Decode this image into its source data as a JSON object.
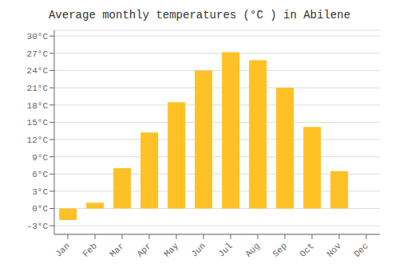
{
  "chart_data": {
    "type": "bar",
    "title": "Average monthly temperatures (°C ) in Abilene",
    "categories": [
      "Jan",
      "Feb",
      "Mar",
      "Apr",
      "May",
      "Jun",
      "Jul",
      "Aug",
      "Sep",
      "Oct",
      "Nov",
      "Dec"
    ],
    "values": [
      -2.0,
      1.0,
      7.0,
      13.2,
      18.5,
      24.0,
      27.2,
      25.8,
      21.0,
      14.2,
      6.5,
      0.0
    ],
    "color": "#FFC125",
    "ylim": [
      -4.5,
      31
    ],
    "yticks": [
      {
        "value": -3,
        "label": "-3°C"
      },
      {
        "value": 0,
        "label": "0°C"
      },
      {
        "value": 3,
        "label": "3°C"
      },
      {
        "value": 6,
        "label": "6°C"
      },
      {
        "value": 9,
        "label": "9°C"
      },
      {
        "value": 12,
        "label": "12°C"
      },
      {
        "value": 15,
        "label": "15°C"
      },
      {
        "value": 18,
        "label": "18°C"
      },
      {
        "value": 21,
        "label": "21°C"
      },
      {
        "value": 24,
        "label": "24°C"
      },
      {
        "value": 27,
        "label": "27°C"
      },
      {
        "value": 30,
        "label": "30°C"
      }
    ],
    "grid": true
  }
}
